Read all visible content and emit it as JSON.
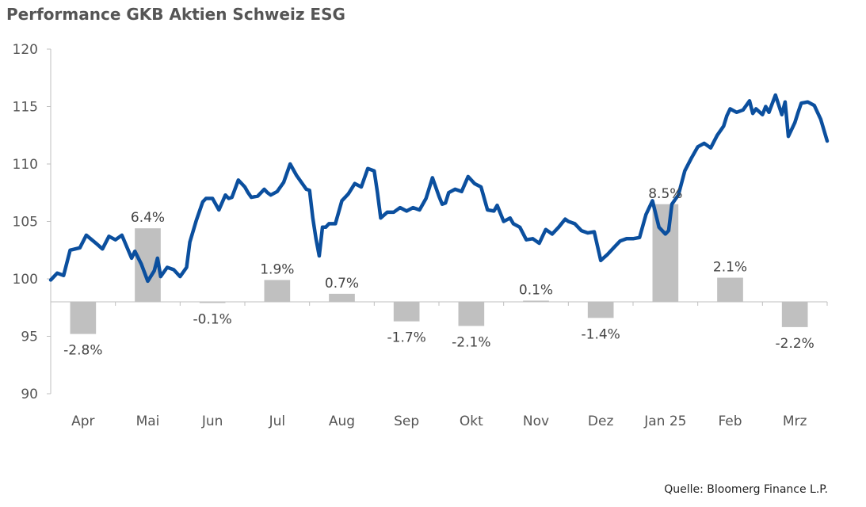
{
  "chart_data": {
    "type": "line",
    "title": "Performance GKB Aktien Schweiz ESG",
    "source": "Quelle: Bloomerg Finance L.P.",
    "ylim": [
      90,
      120
    ],
    "yticks": [
      90,
      95,
      100,
      105,
      110,
      115,
      120
    ],
    "baseline": 98,
    "grid": false,
    "colors": {
      "line": "#0b4f9e",
      "bar": "#c0c0c0",
      "axis": "#bfbfbf"
    },
    "categories": [
      "Apr",
      "Mai",
      "Jun",
      "Jul",
      "Aug",
      "Sep",
      "Okt",
      "Nov",
      "Dez",
      "Jan 25",
      "Feb",
      "Mrz"
    ],
    "monthly_returns": {
      "values": [
        -2.8,
        6.4,
        -0.1,
        1.9,
        0.7,
        -1.7,
        -2.1,
        0.1,
        -1.4,
        8.5,
        2.1,
        -2.2
      ],
      "labels": [
        "-2.8%",
        "6.4%",
        "-0.1%",
        "1.9%",
        "0.7%",
        "-1.7%",
        "-2.1%",
        "0.1%",
        "-1.4%",
        "8.5%",
        "2.1%",
        "-2.2%"
      ]
    },
    "index_line": {
      "x": [
        0,
        0.1,
        0.2,
        0.3,
        0.45,
        0.55,
        0.7,
        0.8,
        0.9,
        1.0,
        1.1,
        1.25,
        1.3,
        1.4,
        1.5,
        1.6,
        1.65,
        1.7,
        1.8,
        1.9,
        2.0,
        2.05,
        2.1,
        2.15,
        2.25,
        2.35,
        2.4,
        2.5,
        2.6,
        2.7,
        2.75,
        2.8,
        2.9,
        3.0,
        3.05,
        3.1,
        3.2,
        3.3,
        3.35,
        3.4,
        3.5,
        3.6,
        3.7,
        3.8,
        3.85,
        3.95,
        4.0,
        4.05,
        4.1,
        4.15,
        4.2,
        4.25,
        4.3,
        4.4,
        4.5,
        4.6,
        4.7,
        4.8,
        4.9,
        5.0,
        5.05,
        5.1,
        5.2,
        5.3,
        5.4,
        5.5,
        5.6,
        5.7,
        5.8,
        5.9,
        6.0,
        6.05,
        6.1,
        6.15,
        6.25,
        6.35,
        6.45,
        6.55,
        6.65,
        6.75,
        6.85,
        6.9,
        7.0,
        7.1,
        7.15,
        7.25,
        7.35,
        7.45,
        7.55,
        7.65,
        7.75,
        7.85,
        7.95,
        8.0,
        8.1,
        8.2,
        8.3,
        8.4,
        8.5,
        8.6,
        8.7,
        8.8,
        8.9,
        9.0,
        9.1,
        9.2,
        9.3,
        9.4,
        9.5,
        9.55,
        9.6,
        9.65,
        9.7,
        9.8,
        9.9,
        10.0,
        10.1,
        10.2,
        10.3,
        10.4,
        10.45,
        10.5,
        10.6,
        10.7,
        10.8,
        10.85,
        10.9,
        11.0,
        11.05,
        11.1,
        11.2,
        11.3,
        11.35,
        11.4,
        11.5,
        11.55,
        11.6,
        11.7,
        11.8,
        11.9,
        12.0
      ],
      "y": [
        99.9,
        100.5,
        100.3,
        102.5,
        102.7,
        103.8,
        103.1,
        102.6,
        103.7,
        103.4,
        103.8,
        101.8,
        102.4,
        101.3,
        99.8,
        100.7,
        101.8,
        100.2,
        101.0,
        100.8,
        100.2,
        100.6,
        101.0,
        103.2,
        105.1,
        106.7,
        107.0,
        107.0,
        106.0,
        107.3,
        107.0,
        107.1,
        108.6,
        108.0,
        107.5,
        107.1,
        107.2,
        107.8,
        107.5,
        107.3,
        107.6,
        108.4,
        110.0,
        109.0,
        108.6,
        107.8,
        107.7,
        105.3,
        103.5,
        102.0,
        104.5,
        104.5,
        104.8,
        104.8,
        106.8,
        107.4,
        108.3,
        108.0,
        109.6,
        109.4,
        107.5,
        105.3,
        105.8,
        105.8,
        106.2,
        105.9,
        106.2,
        106.0,
        107.0,
        108.8,
        107.2,
        106.5,
        106.6,
        107.5,
        107.8,
        107.6,
        108.9,
        108.3,
        108.0,
        106.0,
        105.9,
        106.4,
        105.0,
        105.3,
        104.8,
        104.5,
        103.4,
        103.5,
        103.1,
        104.3,
        103.9,
        104.5,
        105.2,
        105.0,
        104.8,
        104.2,
        104.0,
        104.1,
        101.6,
        102.1,
        102.7,
        103.3,
        103.5,
        103.5,
        103.6,
        105.6,
        106.8,
        104.5,
        103.9,
        104.2,
        106.5,
        106.9,
        107.3,
        109.4,
        110.5,
        111.5,
        111.8,
        111.4,
        112.5,
        113.3,
        114.2,
        114.8,
        114.5,
        114.7,
        115.5,
        114.4,
        114.8,
        114.3,
        115.0,
        114.5,
        116.0,
        114.3,
        115.4,
        112.4,
        113.6,
        114.5,
        115.3,
        115.4,
        115.1,
        113.9,
        112.0
      ]
    }
  }
}
